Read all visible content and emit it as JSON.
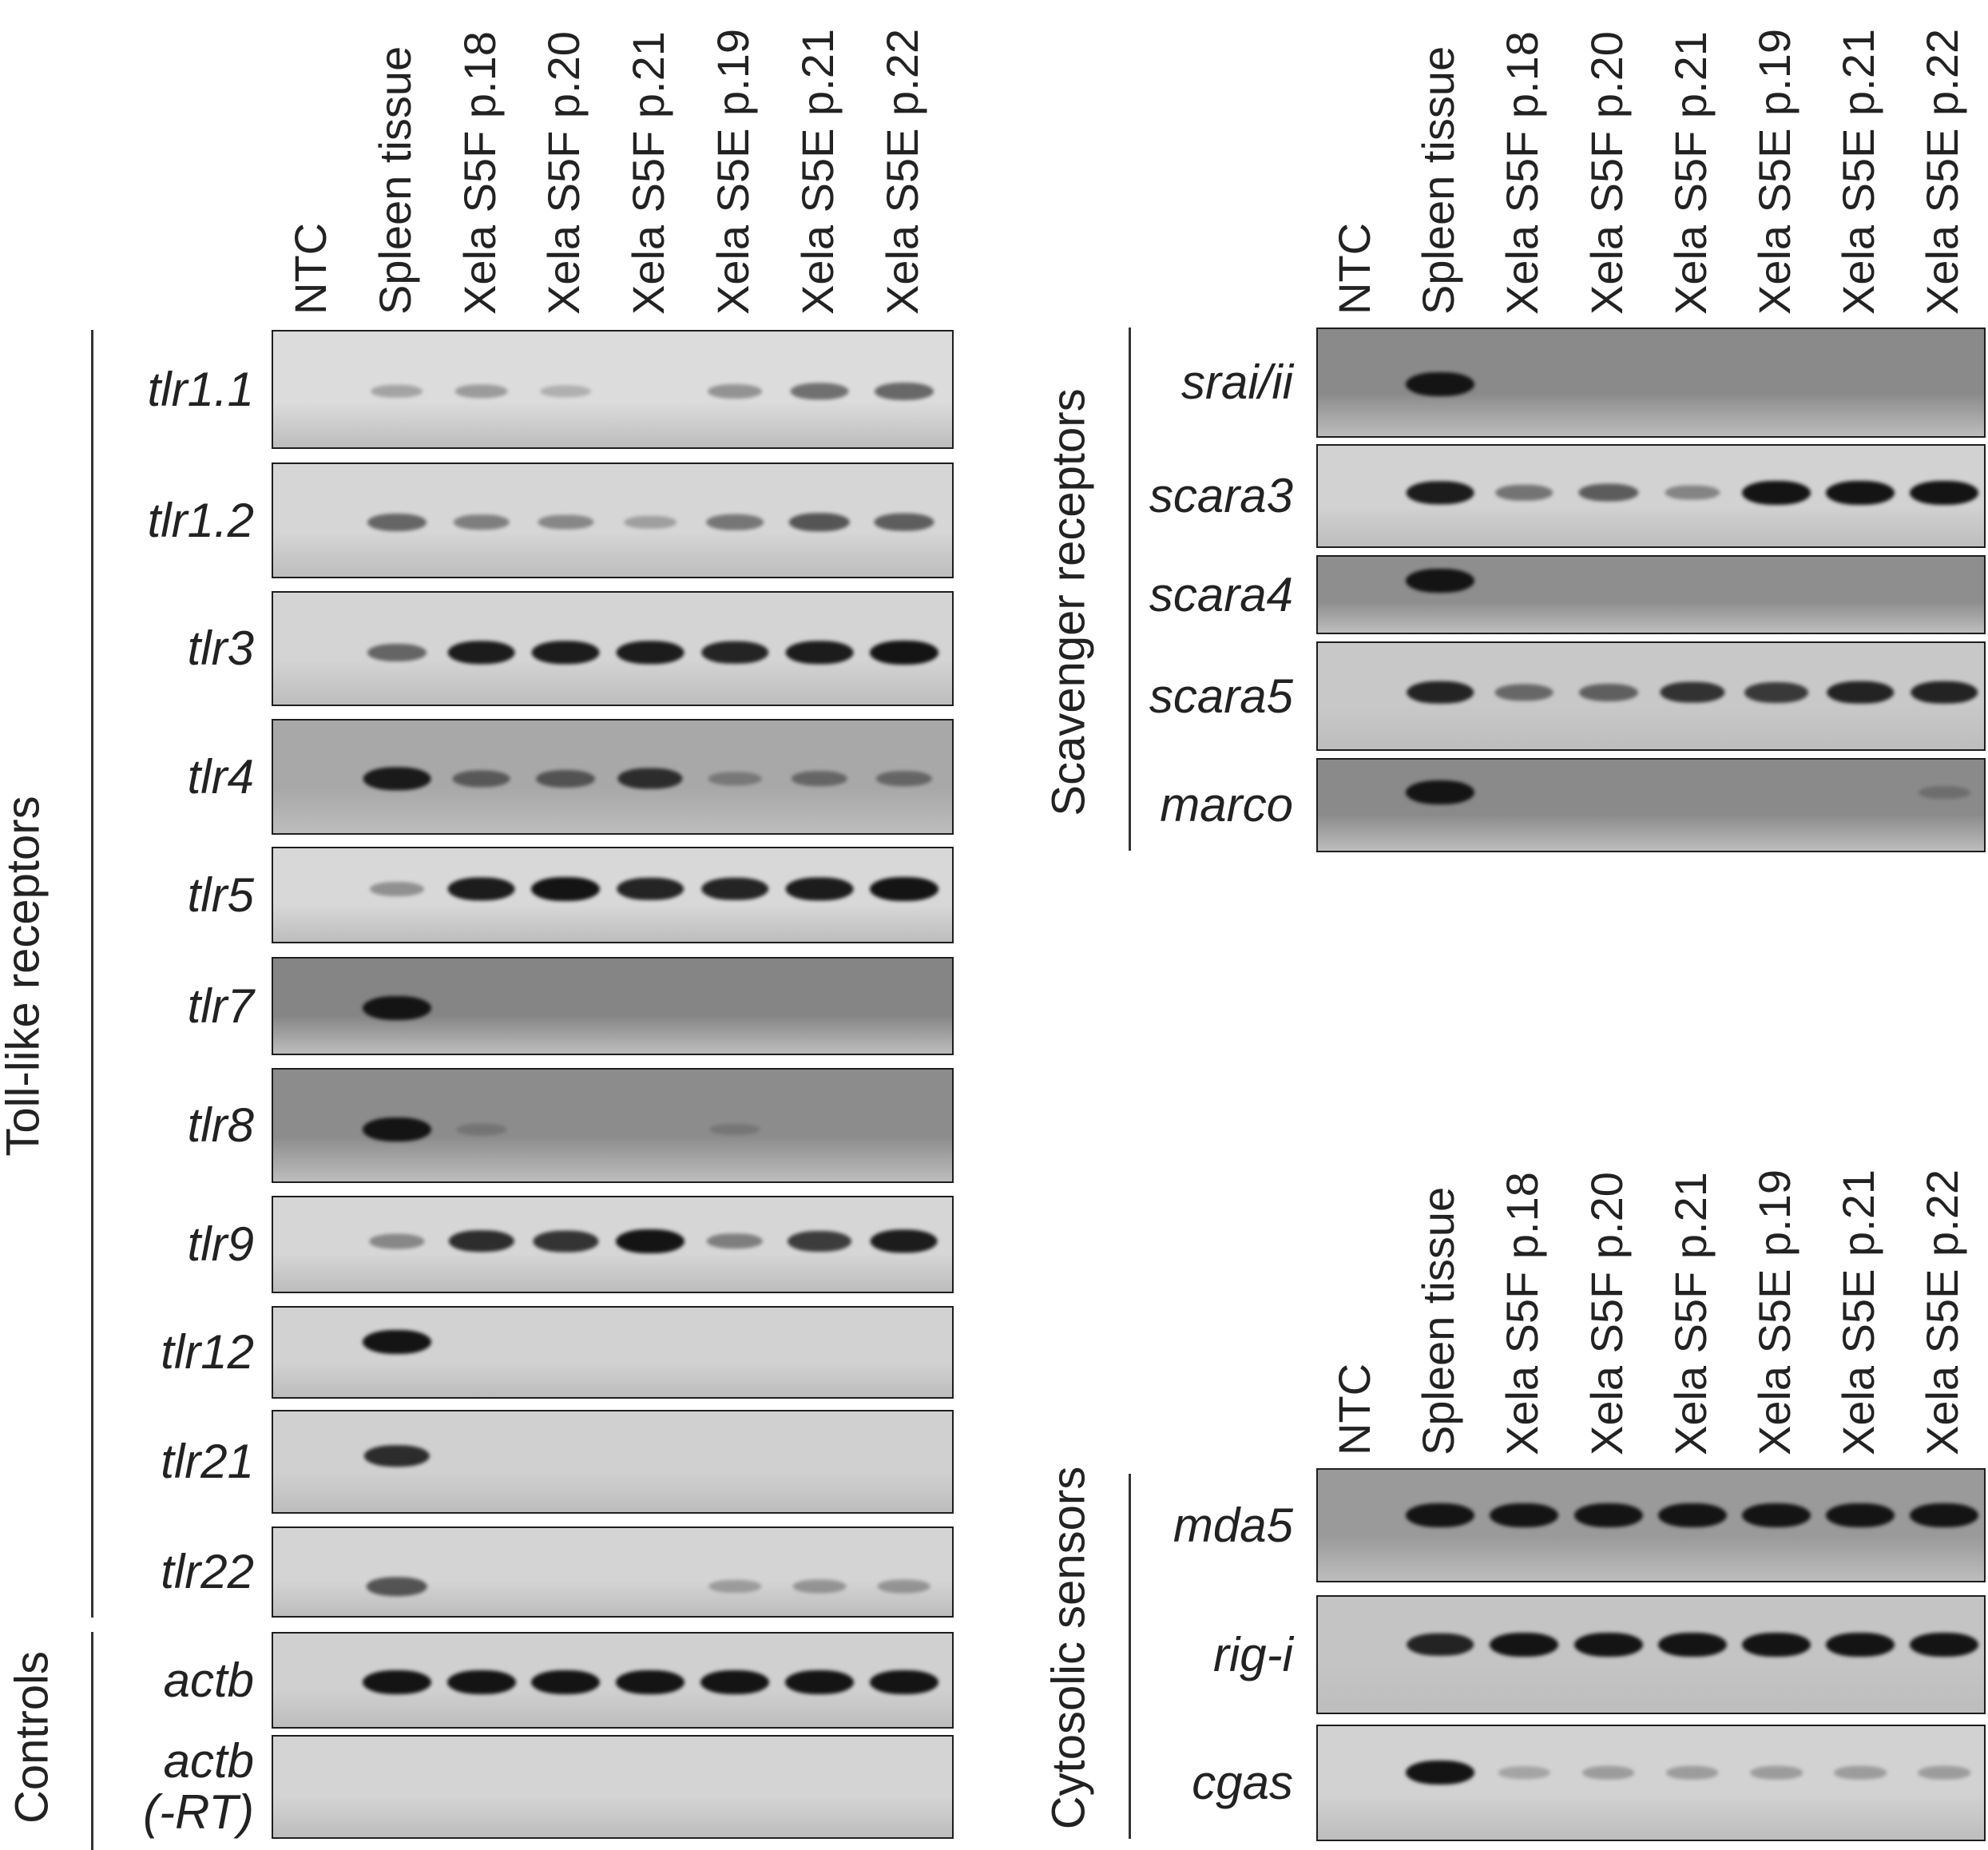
{
  "lanes": [
    "NTC",
    "Spleen tissue",
    "Xela S5F p.18",
    "Xela S5F p.20",
    "Xela S5F p.21",
    "Xela S5E p.19",
    "Xela S5E p.21",
    "Xela S5E p.22"
  ],
  "panels": [
    {
      "id": "toll",
      "group_labels": [
        "Toll-like receptors",
        "Controls"
      ],
      "rows": [
        {
          "gene": "tlr1.1",
          "background": "#dcdcdc",
          "bands": [
            0,
            0.15,
            0.2,
            0.08,
            0,
            0.25,
            0.45,
            0.5
          ]
        },
        {
          "gene": "tlr1.2",
          "background": "#d6d6d6",
          "bands": [
            0,
            0.5,
            0.35,
            0.3,
            0.15,
            0.4,
            0.6,
            0.55
          ]
        },
        {
          "gene": "tlr3",
          "background": "#d4d4d4",
          "bands": [
            0,
            0.5,
            0.95,
            0.95,
            0.95,
            0.9,
            0.95,
            1
          ]
        },
        {
          "gene": "tlr4",
          "background": "#a8a8a8",
          "bands": [
            0,
            0.95,
            0.45,
            0.5,
            0.8,
            0.2,
            0.35,
            0.35
          ]
        },
        {
          "gene": "tlr5",
          "background": "#d8d8d8",
          "bands": [
            0,
            0.25,
            0.95,
            1,
            0.9,
            0.9,
            0.95,
            1
          ]
        },
        {
          "gene": "tlr7",
          "background": "#858585",
          "bands": [
            0,
            1,
            0,
            0,
            0,
            0,
            0,
            0
          ]
        },
        {
          "gene": "tlr8",
          "background": "#8c8c8c",
          "bands": [
            0,
            1,
            0.05,
            0,
            0,
            0.03,
            0,
            0
          ]
        },
        {
          "gene": "tlr9",
          "background": "#d6d6d6",
          "bands": [
            0,
            0.3,
            0.85,
            0.8,
            1,
            0.35,
            0.75,
            0.95
          ]
        },
        {
          "gene": "tlr12",
          "background": "#d2d2d2",
          "bands": [
            0,
            1,
            0,
            0,
            0,
            0,
            0,
            0
          ]
        },
        {
          "gene": "tlr21",
          "background": "#d0d0d0",
          "bands": [
            0,
            0.85,
            0,
            0,
            0,
            0,
            0,
            0
          ]
        },
        {
          "gene": "tlr22",
          "background": "#d4d4d4",
          "bands": [
            0,
            0.6,
            0,
            0,
            0,
            0.15,
            0.2,
            0.2
          ]
        },
        {
          "gene": "actb",
          "background": "#d0d0d0",
          "bands": [
            0,
            1,
            1,
            1,
            1,
            1,
            1,
            1
          ]
        },
        {
          "gene": "actb\n(-RT)",
          "background": "#d4d4d4",
          "bands": [
            0,
            0,
            0,
            0,
            0,
            0,
            0,
            0
          ]
        }
      ]
    },
    {
      "id": "scavenger",
      "group_labels": [
        "Scavenger receptors"
      ],
      "rows": [
        {
          "gene": "srai/ii",
          "background": "#8a8a8a",
          "bands": [
            0,
            1,
            0,
            0,
            0,
            0,
            0,
            0
          ]
        },
        {
          "gene": "scara3",
          "background": "#d2d2d2",
          "bands": [
            0,
            0.95,
            0.4,
            0.55,
            0.3,
            1,
            1,
            1
          ]
        },
        {
          "gene": "scara4",
          "background": "#8e8e8e",
          "bands": [
            0,
            1,
            0,
            0,
            0,
            0,
            0,
            0
          ]
        },
        {
          "gene": "scara5",
          "background": "#c8c8c8",
          "bands": [
            0,
            0.9,
            0.45,
            0.5,
            0.8,
            0.75,
            0.9,
            0.9
          ]
        },
        {
          "gene": "marco",
          "background": "#8a8a8a",
          "bands": [
            0,
            1,
            0,
            0,
            0,
            0,
            0,
            0.1
          ]
        }
      ]
    },
    {
      "id": "cytosolic",
      "group_labels": [
        "Cytosolic sensors"
      ],
      "rows": [
        {
          "gene": "mda5",
          "background": "#9a9a9a",
          "bands": [
            0,
            1,
            1,
            1,
            1,
            1,
            1,
            1
          ]
        },
        {
          "gene": "rig-i",
          "background": "#c4c4c4",
          "bands": [
            0,
            0.9,
            1,
            1,
            1,
            1,
            1,
            1
          ]
        },
        {
          "gene": "cgas",
          "background": "#d2d2d2",
          "bands": [
            0,
            1,
            0.1,
            0.15,
            0.15,
            0.15,
            0.15,
            0.15
          ]
        }
      ]
    }
  ]
}
